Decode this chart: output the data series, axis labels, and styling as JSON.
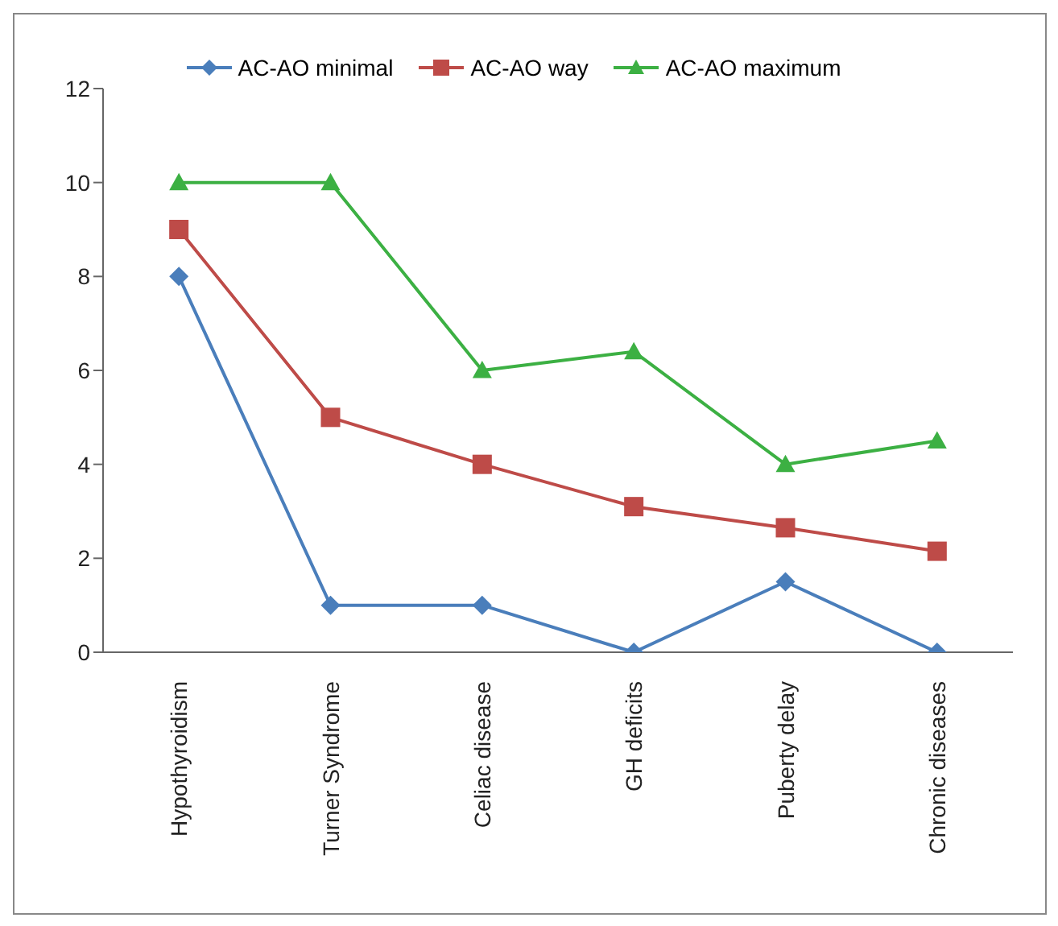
{
  "chart_data": {
    "type": "line",
    "categories": [
      "Hypothyroidism",
      "Turner Syndrome",
      "Celiac disease",
      "GH deficits",
      "Puberty delay",
      "Chronic diseases"
    ],
    "series": [
      {
        "name": "AC-AO minimal",
        "color": "#4a7ebb",
        "marker": "diamond",
        "values": [
          8,
          1,
          1,
          0,
          1.5,
          0
        ]
      },
      {
        "name": "AC-AO way",
        "color": "#be4b48",
        "marker": "square",
        "values": [
          9,
          5,
          4,
          3.1,
          2.65,
          2.15
        ]
      },
      {
        "name": "AC-AO maximum",
        "color": "#3cb043",
        "marker": "triangle",
        "values": [
          10,
          10,
          6,
          6.4,
          4,
          4.5
        ]
      }
    ],
    "ylim": [
      0,
      12
    ],
    "yticks": [
      0,
      2,
      4,
      6,
      8,
      10,
      12
    ],
    "legend": "top"
  }
}
